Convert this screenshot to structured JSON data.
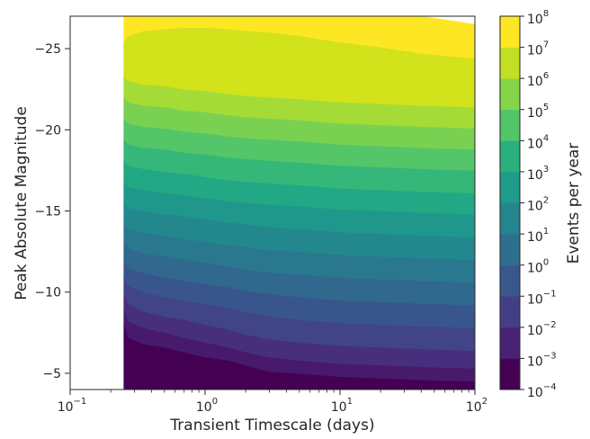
{
  "chart_data": {
    "type": "contourf",
    "xlabel": "Transient Timescale (days)",
    "ylabel": "Peak Absolute Magnitude",
    "colorbar_label": "Events per year",
    "x_scale": "log",
    "xlim": [
      0.1,
      100
    ],
    "ylim": [
      -4,
      -27
    ],
    "y_axis_inverted": true,
    "x_ticks": [
      {
        "base": "10",
        "exp": "−1"
      },
      {
        "base": "10",
        "exp": "0"
      },
      {
        "base": "10",
        "exp": "1"
      },
      {
        "base": "10",
        "exp": "2"
      }
    ],
    "x_tick_values": [
      0.1,
      1,
      10,
      100
    ],
    "y_ticks": [
      "−5",
      "−10",
      "−15",
      "−20",
      "−25"
    ],
    "y_tick_values": [
      -5,
      -10,
      -15,
      -20,
      -25
    ],
    "colorbar_ticks": [
      {
        "base": "10",
        "exp": "−4"
      },
      {
        "base": "10",
        "exp": "−3"
      },
      {
        "base": "10",
        "exp": "−2"
      },
      {
        "base": "10",
        "exp": "−1"
      },
      {
        "base": "10",
        "exp": "0"
      },
      {
        "base": "10",
        "exp": "1"
      },
      {
        "base": "10",
        "exp": "2"
      },
      {
        "base": "10",
        "exp": "3"
      },
      {
        "base": "10",
        "exp": "4"
      },
      {
        "base": "10",
        "exp": "5"
      },
      {
        "base": "10",
        "exp": "6"
      },
      {
        "base": "10",
        "exp": "7"
      },
      {
        "base": "10",
        "exp": "8"
      }
    ],
    "colorbar_tick_log_values": [
      -4,
      -3,
      -2,
      -1,
      0,
      1,
      2,
      3,
      4,
      5,
      6,
      7,
      8
    ],
    "colormap": "viridis",
    "level_colors": [
      "#440154",
      "#482475",
      "#414487",
      "#355f8d",
      "#2a788e",
      "#21918c",
      "#22a884",
      "#44bf70",
      "#7ad151",
      "#bddf26",
      "#fde725"
    ],
    "colorbar_colors": [
      "#440154",
      "#482173",
      "#433e85",
      "#38588c",
      "#2d708e",
      "#25858e",
      "#1e9b8a",
      "#2ab07f",
      "#52c569",
      "#86d549",
      "#c2df23",
      "#fde725"
    ],
    "x_grid": [
      0.25,
      0.27,
      0.35,
      0.5,
      0.7,
      1.0,
      1.5,
      2.0,
      3.0,
      5.0,
      7.0,
      10,
      20,
      40,
      100
    ],
    "level_boundaries": [
      {
        "log_rate": -4,
        "mag": [
          -8.1,
          -7.2,
          -6.8,
          -6.6,
          -6.3,
          -6.0,
          -5.8,
          -5.5,
          -5.1,
          -5.0,
          -4.9,
          -4.8,
          -4.7,
          -4.6,
          -4.5
        ]
      },
      {
        "log_rate": -3,
        "mag": [
          -9.0,
          -8.2,
          -7.8,
          -7.5,
          -7.2,
          -6.9,
          -6.6,
          -6.3,
          -6.0,
          -5.8,
          -5.7,
          -5.6,
          -5.5,
          -5.4,
          -5.3
        ]
      },
      {
        "log_rate": -2,
        "mag": [
          -10.0,
          -9.3,
          -8.8,
          -8.5,
          -8.3,
          -8.0,
          -7.7,
          -7.4,
          -7.1,
          -6.9,
          -6.8,
          -6.7,
          -6.6,
          -6.5,
          -6.4
        ]
      },
      {
        "log_rate": -1,
        "mag": [
          -11.0,
          -10.4,
          -10.0,
          -9.7,
          -9.5,
          -9.3,
          -9.0,
          -8.8,
          -8.5,
          -8.3,
          -8.2,
          -8.1,
          -8.0,
          -7.9,
          -7.8
        ]
      },
      {
        "log_rate": 0,
        "mag": [
          -12.0,
          -11.5,
          -11.2,
          -10.9,
          -10.7,
          -10.5,
          -10.3,
          -10.1,
          -9.9,
          -9.7,
          -9.6,
          -9.5,
          -9.4,
          -9.3,
          -9.2
        ]
      },
      {
        "log_rate": 1,
        "mag": [
          -13.1,
          -12.7,
          -12.4,
          -12.2,
          -12.0,
          -11.8,
          -11.6,
          -11.4,
          -11.2,
          -11.1,
          -11.0,
          -10.9,
          -10.8,
          -10.7,
          -10.6
        ]
      },
      {
        "log_rate": 2,
        "mag": [
          -14.3,
          -13.9,
          -13.7,
          -13.5,
          -13.3,
          -13.1,
          -12.9,
          -12.8,
          -12.6,
          -12.5,
          -12.4,
          -12.3,
          -12.2,
          -12.1,
          -12.0
        ]
      },
      {
        "log_rate": 3,
        "mag": [
          -15.6,
          -15.2,
          -15.0,
          -14.8,
          -14.7,
          -14.5,
          -14.3,
          -14.2,
          -14.0,
          -13.9,
          -13.8,
          -13.7,
          -13.6,
          -13.5,
          -13.4
        ]
      },
      {
        "log_rate": 4,
        "mag": [
          -16.8,
          -16.5,
          -16.3,
          -16.1,
          -16.0,
          -15.8,
          -15.6,
          -15.5,
          -15.4,
          -15.3,
          -15.2,
          -15.1,
          -15.0,
          -14.9,
          -14.8
        ]
      },
      {
        "log_rate": 5,
        "mag": [
          -18.1,
          -17.8,
          -17.6,
          -17.4,
          -17.3,
          -17.1,
          -16.9,
          -16.8,
          -16.7,
          -16.6,
          -16.5,
          -16.4,
          -16.3,
          -16.2,
          -16.1
        ]
      },
      {
        "log_rate": 6,
        "mag": [
          -19.4,
          -19.1,
          -18.9,
          -18.8,
          -18.6,
          -18.5,
          -18.3,
          -18.2,
          -18.1,
          -18.0,
          -17.9,
          -17.8,
          -17.7,
          -17.6,
          -17.5
        ]
      },
      {
        "log_rate": 7,
        "mag": [
          -20.7,
          -20.4,
          -20.2,
          -20.1,
          -19.9,
          -19.8,
          -19.6,
          -19.5,
          -19.4,
          -19.3,
          -19.2,
          -19.1,
          -19.0,
          -18.9,
          -18.8
        ]
      },
      {
        "log_rate": 8,
        "mag": [
          -22.0,
          -21.7,
          -21.5,
          -21.4,
          -21.2,
          -21.1,
          -20.9,
          -20.8,
          -20.7,
          -20.6,
          -20.5,
          -20.4,
          -20.3,
          -20.2,
          -20.1
        ]
      },
      {
        "log_rate": 9,
        "mag": [
          -23.3,
          -23.0,
          -22.8,
          -22.7,
          -22.5,
          -22.4,
          -22.2,
          -22.1,
          -22.0,
          -21.9,
          -21.8,
          -21.7,
          -21.6,
          -21.5,
          -21.4
        ]
      },
      {
        "log_rate": 10,
        "mag": [
          -25.4,
          -25.8,
          -26.1,
          -26.2,
          -26.3,
          -26.3,
          -26.2,
          -26.1,
          -26.0,
          -25.8,
          -25.6,
          -25.4,
          -25.1,
          -24.7,
          -24.4
        ]
      },
      {
        "log_rate": 11,
        "mag": [
          -27.0,
          -27.0,
          -27.0,
          -27.0,
          -27.0,
          -27.0,
          -27.0,
          -27.0,
          -27.0,
          -27.0,
          -27.0,
          -27.0,
          -27.0,
          -27.0,
          -26.5
        ]
      }
    ]
  }
}
